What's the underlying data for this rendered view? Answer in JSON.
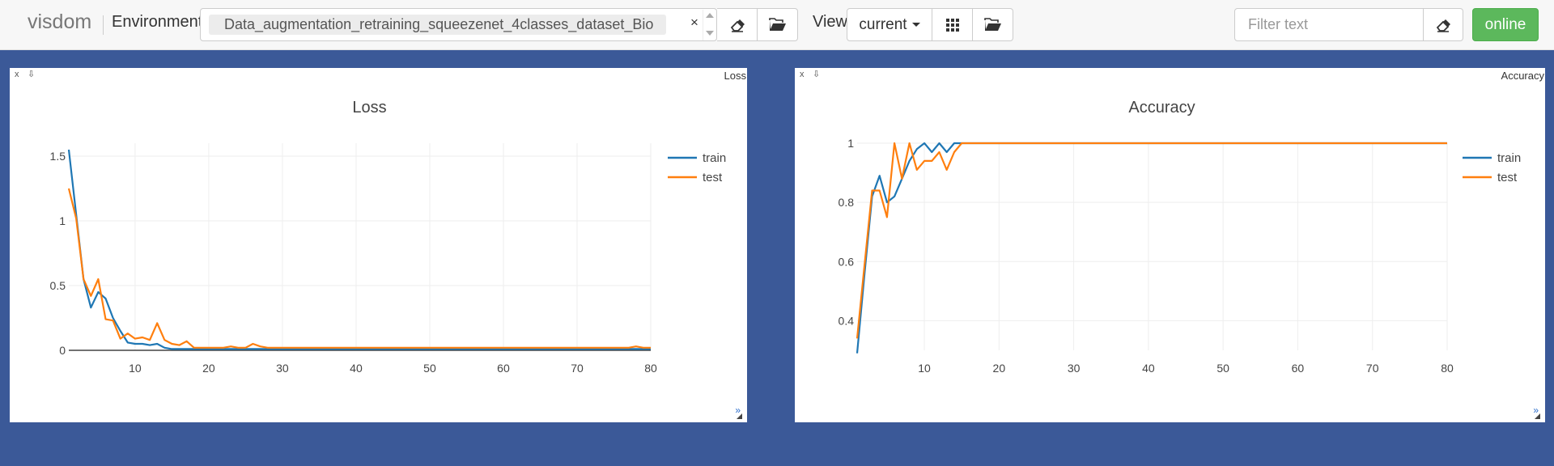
{
  "app": {
    "brand": "visdom"
  },
  "toolbar": {
    "environment_label": "Environment",
    "environment_value": "Data_augmentation_retraining_squeezenet_4classes_dataset_Bio",
    "clear_symbol": "×",
    "view_label": "View",
    "view_value": "current",
    "filter_placeholder": "Filter text",
    "status_label": "online",
    "icons": [
      "eraser-icon",
      "folder-open-icon",
      "grid-icon",
      "folder-open-icon",
      "eraser-icon"
    ]
  },
  "panes": [
    {
      "window_title": "Loss",
      "close_symbol": "x",
      "save_symbol": "⇩",
      "expand_symbol": "»"
    },
    {
      "window_title": "Accuracy",
      "close_symbol": "x",
      "save_symbol": "⇩",
      "expand_symbol": "»"
    }
  ],
  "colors": {
    "train": "#1f77b4",
    "test": "#ff7f0e",
    "background": "#3b5998",
    "online": "#5cb85c"
  },
  "chart_data": [
    {
      "type": "line",
      "title": "Loss",
      "xlim": [
        1,
        80
      ],
      "ylim": [
        0,
        1.6
      ],
      "xticks": [
        10,
        20,
        30,
        40,
        50,
        60,
        70,
        80
      ],
      "yticks": [
        0,
        0.5,
        1,
        1.5
      ],
      "ytick_labels": [
        "0",
        "0.5",
        "1",
        "1.5"
      ],
      "grid": true,
      "legend": "top-right",
      "x": [
        1,
        2,
        3,
        4,
        5,
        6,
        7,
        8,
        9,
        10,
        11,
        12,
        13,
        14,
        15,
        16,
        17,
        18,
        19,
        20,
        21,
        22,
        23,
        24,
        25,
        26,
        27,
        28,
        29,
        30,
        31,
        32,
        33,
        34,
        35,
        36,
        37,
        38,
        39,
        40,
        41,
        42,
        43,
        44,
        45,
        46,
        47,
        48,
        49,
        50,
        51,
        52,
        53,
        54,
        55,
        56,
        57,
        58,
        59,
        60,
        61,
        62,
        63,
        64,
        65,
        66,
        67,
        68,
        69,
        70,
        71,
        72,
        73,
        74,
        75,
        76,
        77,
        78,
        79,
        80
      ],
      "series": [
        {
          "name": "train",
          "color": "#1f77b4",
          "values": [
            1.55,
            1.05,
            0.55,
            0.33,
            0.45,
            0.4,
            0.25,
            0.15,
            0.06,
            0.05,
            0.05,
            0.04,
            0.05,
            0.02,
            0.01,
            0.01,
            0.01,
            0.01,
            0.01,
            0.01,
            0.01,
            0.01,
            0.01,
            0.01,
            0.01,
            0.01,
            0.01,
            0.01,
            0.01,
            0.01,
            0.01,
            0.01,
            0.01,
            0.01,
            0.01,
            0.01,
            0.01,
            0.01,
            0.01,
            0.01,
            0.01,
            0.01,
            0.01,
            0.01,
            0.01,
            0.01,
            0.01,
            0.01,
            0.01,
            0.01,
            0.01,
            0.01,
            0.01,
            0.01,
            0.01,
            0.01,
            0.01,
            0.01,
            0.01,
            0.01,
            0.01,
            0.01,
            0.01,
            0.01,
            0.01,
            0.01,
            0.01,
            0.01,
            0.01,
            0.01,
            0.01,
            0.01,
            0.01,
            0.01,
            0.01,
            0.01,
            0.01,
            0.01,
            0.01,
            0.01
          ]
        },
        {
          "name": "test",
          "color": "#ff7f0e",
          "values": [
            1.25,
            1.02,
            0.55,
            0.42,
            0.55,
            0.24,
            0.23,
            0.09,
            0.13,
            0.09,
            0.1,
            0.08,
            0.21,
            0.08,
            0.05,
            0.04,
            0.07,
            0.02,
            0.02,
            0.02,
            0.02,
            0.02,
            0.03,
            0.02,
            0.02,
            0.05,
            0.03,
            0.02,
            0.02,
            0.02,
            0.02,
            0.02,
            0.02,
            0.02,
            0.02,
            0.02,
            0.02,
            0.02,
            0.02,
            0.02,
            0.02,
            0.02,
            0.02,
            0.02,
            0.02,
            0.02,
            0.02,
            0.02,
            0.02,
            0.02,
            0.02,
            0.02,
            0.02,
            0.02,
            0.02,
            0.02,
            0.02,
            0.02,
            0.02,
            0.02,
            0.02,
            0.02,
            0.02,
            0.02,
            0.02,
            0.02,
            0.02,
            0.02,
            0.02,
            0.02,
            0.02,
            0.02,
            0.02,
            0.02,
            0.02,
            0.02,
            0.02,
            0.03,
            0.02,
            0.02
          ]
        }
      ]
    },
    {
      "type": "line",
      "title": "Accuracy",
      "xlim": [
        1,
        80
      ],
      "ylim": [
        0.3,
        1.0
      ],
      "xticks": [
        10,
        20,
        30,
        40,
        50,
        60,
        70,
        80
      ],
      "yticks": [
        0.4,
        0.6,
        0.8,
        1
      ],
      "ytick_labels": [
        "0.4",
        "0.6",
        "0.8",
        "1"
      ],
      "grid": true,
      "legend": "top-right",
      "x": [
        1,
        2,
        3,
        4,
        5,
        6,
        7,
        8,
        9,
        10,
        11,
        12,
        13,
        14,
        15,
        16,
        17,
        18,
        19,
        20,
        21,
        22,
        23,
        24,
        25,
        26,
        27,
        28,
        29,
        30,
        31,
        32,
        33,
        34,
        35,
        36,
        37,
        38,
        39,
        40,
        41,
        42,
        43,
        44,
        45,
        46,
        47,
        48,
        49,
        50,
        51,
        52,
        53,
        54,
        55,
        56,
        57,
        58,
        59,
        60,
        61,
        62,
        63,
        64,
        65,
        66,
        67,
        68,
        69,
        70,
        71,
        72,
        73,
        74,
        75,
        76,
        77,
        78,
        79,
        80
      ],
      "series": [
        {
          "name": "train",
          "color": "#1f77b4",
          "values": [
            0.29,
            0.56,
            0.82,
            0.89,
            0.8,
            0.82,
            0.88,
            0.94,
            0.98,
            1.0,
            0.97,
            1.0,
            0.97,
            1.0,
            1.0,
            1.0,
            1.0,
            1.0,
            1.0,
            1.0,
            1.0,
            1.0,
            1.0,
            1.0,
            1.0,
            1.0,
            1.0,
            1.0,
            1.0,
            1.0,
            1.0,
            1.0,
            1.0,
            1.0,
            1.0,
            1.0,
            1.0,
            1.0,
            1.0,
            1.0,
            1.0,
            1.0,
            1.0,
            1.0,
            1.0,
            1.0,
            1.0,
            1.0,
            1.0,
            1.0,
            1.0,
            1.0,
            1.0,
            1.0,
            1.0,
            1.0,
            1.0,
            1.0,
            1.0,
            1.0,
            1.0,
            1.0,
            1.0,
            1.0,
            1.0,
            1.0,
            1.0,
            1.0,
            1.0,
            1.0,
            1.0,
            1.0,
            1.0,
            1.0,
            1.0,
            1.0,
            1.0,
            1.0,
            1.0,
            1.0
          ]
        },
        {
          "name": "test",
          "color": "#ff7f0e",
          "values": [
            0.34,
            0.59,
            0.84,
            0.84,
            0.75,
            1.0,
            0.88,
            1.0,
            0.91,
            0.94,
            0.94,
            0.97,
            0.91,
            0.97,
            1.0,
            1.0,
            1.0,
            1.0,
            1.0,
            1.0,
            1.0,
            1.0,
            1.0,
            1.0,
            1.0,
            1.0,
            1.0,
            1.0,
            1.0,
            1.0,
            1.0,
            1.0,
            1.0,
            1.0,
            1.0,
            1.0,
            1.0,
            1.0,
            1.0,
            1.0,
            1.0,
            1.0,
            1.0,
            1.0,
            1.0,
            1.0,
            1.0,
            1.0,
            1.0,
            1.0,
            1.0,
            1.0,
            1.0,
            1.0,
            1.0,
            1.0,
            1.0,
            1.0,
            1.0,
            1.0,
            1.0,
            1.0,
            1.0,
            1.0,
            1.0,
            1.0,
            1.0,
            1.0,
            1.0,
            1.0,
            1.0,
            1.0,
            1.0,
            1.0,
            1.0,
            1.0,
            1.0,
            1.0,
            1.0,
            1.0
          ]
        }
      ]
    }
  ]
}
